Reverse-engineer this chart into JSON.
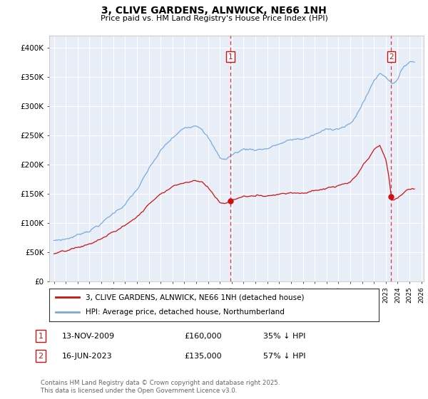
{
  "title": "3, CLIVE GARDENS, ALNWICK, NE66 1NH",
  "subtitle": "Price paid vs. HM Land Registry's House Price Index (HPI)",
  "background_color": "#ffffff",
  "plot_bg_color": "#e8eef8",
  "grid_color": "#ffffff",
  "line1_color": "#cc1111",
  "line2_color": "#7aaadd",
  "transaction1_x": 2009.875,
  "transaction1_y": 160000,
  "transaction2_x": 2023.46,
  "transaction2_y": 135000,
  "vline_color": "#ee3333",
  "legend_line1": "3, CLIVE GARDENS, ALNWICK, NE66 1NH (detached house)",
  "legend_line2": "HPI: Average price, detached house, Northumberland",
  "table_rows": [
    [
      "1",
      "13-NOV-2009",
      "£160,000",
      "35% ↓ HPI"
    ],
    [
      "2",
      "16-JUN-2023",
      "£135,000",
      "57% ↓ HPI"
    ]
  ],
  "footer": "Contains HM Land Registry data © Crown copyright and database right 2025.\nThis data is licensed under the Open Government Licence v3.0.",
  "ylim": [
    0,
    420000
  ],
  "yticks": [
    0,
    50000,
    100000,
    150000,
    200000,
    250000,
    300000,
    350000,
    400000
  ],
  "ytick_labels": [
    "£0",
    "£50K",
    "£100K",
    "£150K",
    "£200K",
    "£250K",
    "£300K",
    "£350K",
    "£400K"
  ],
  "xlim": [
    1994.6,
    2026.2
  ]
}
